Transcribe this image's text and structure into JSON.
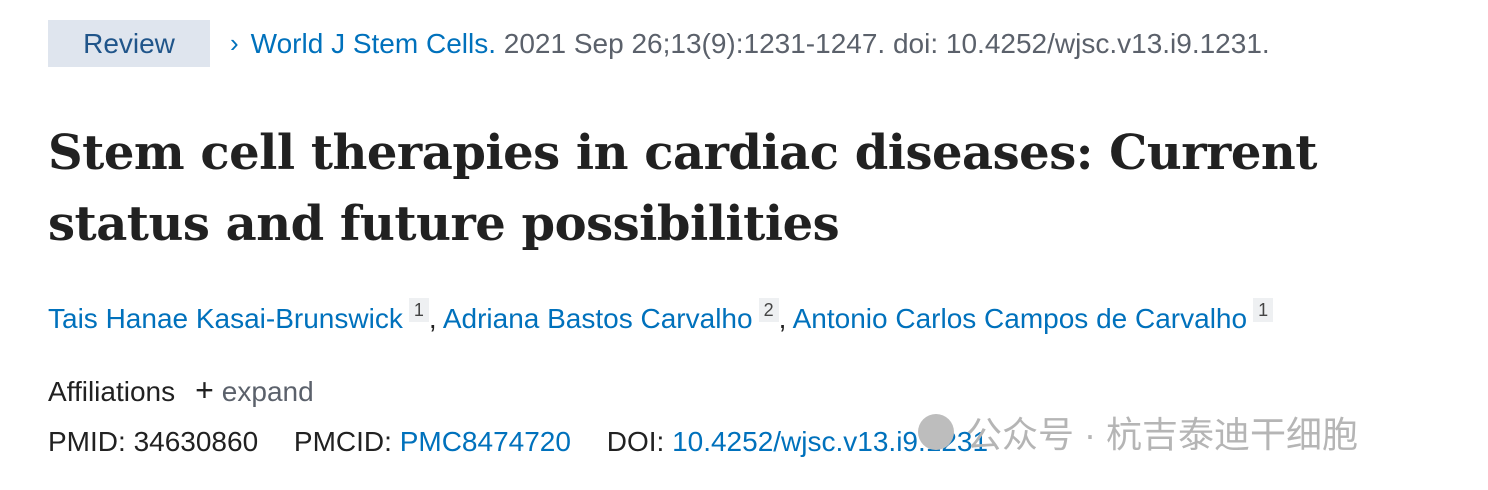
{
  "citation": {
    "badge": "Review",
    "journal": "World J Stem Cells.",
    "details": "2021 Sep 26;13(9):1231-1247. doi: 10.4252/wjsc.v13.i9.1231."
  },
  "title": "Stem cell therapies in cardiac diseases: Current status and future possibilities",
  "authors": [
    {
      "name": "Tais Hanae Kasai-Brunswick",
      "aff": "1"
    },
    {
      "name": "Adriana Bastos Carvalho",
      "aff": "2"
    },
    {
      "name": "Antonio Carlos Campos de Carvalho",
      "aff": "1"
    }
  ],
  "affiliations": {
    "label": "Affiliations",
    "expand": "expand"
  },
  "ids": {
    "pmid_label": "PMID:",
    "pmid": "34630860",
    "pmcid_label": "PMCID:",
    "pmcid": "PMC8474720",
    "doi_label": "DOI:",
    "doi": "10.4252/wjsc.v13.i9.1231"
  },
  "watermark": "公众号 · 杭吉泰迪干细胞",
  "colors": {
    "link": "#0071bc",
    "badge_bg": "#dfe5ee",
    "badge_text": "#20558a"
  }
}
